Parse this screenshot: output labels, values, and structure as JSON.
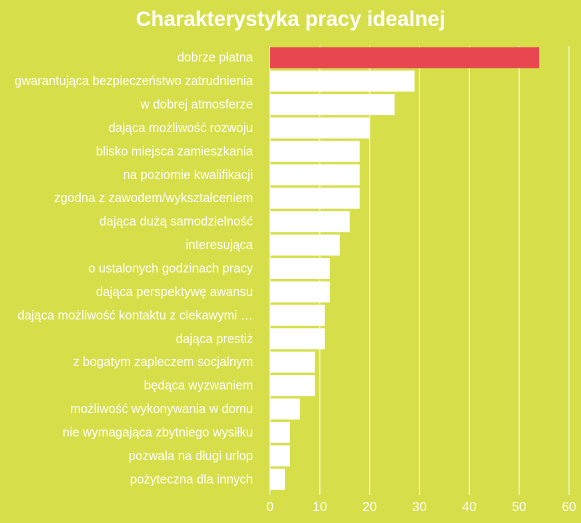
{
  "chart_data": {
    "type": "bar",
    "orientation": "horizontal",
    "title": "Charakterystyka pracy idealnej",
    "categories": [
      "dobrze płatna",
      "gwarantująca bezpieczeństwo zatrudnienia",
      "w dobrej atmosferze",
      "dająca możliwość rozwoju",
      "blisko miejsca zamieszkania",
      "na poziomie kwalifikacji",
      "zgodna z zawodem/wykształceniem",
      "dająca dużą samodzielność",
      "interesująca",
      "o ustalonych godzinach pracy",
      "dająca perspektywę awansu",
      "dająca możliwość kontaktu z ciekawymi …",
      "dająca prestiż",
      "z bogatym zapleczem socjalnym",
      "będąca wyzwaniem",
      "możliwość wykonywania w domu",
      "nie wymagająca zbytniego wysiłku",
      "pozwala na długi urlop",
      "pożyteczna dla innych"
    ],
    "values": [
      54,
      29,
      25,
      20,
      18,
      18,
      18,
      16,
      14,
      12,
      12,
      11,
      11,
      9,
      9,
      6,
      4,
      4,
      3
    ],
    "highlight_index": 0,
    "xlim": [
      0,
      60
    ],
    "xticks": [
      0,
      10,
      20,
      30,
      40,
      50,
      60
    ],
    "grid": true,
    "xlabel": "",
    "ylabel": ""
  },
  "colors": {
    "background": "#d6df4a",
    "bar": "#ffffff",
    "highlight": "#e8474f",
    "text": "#ffffff"
  }
}
